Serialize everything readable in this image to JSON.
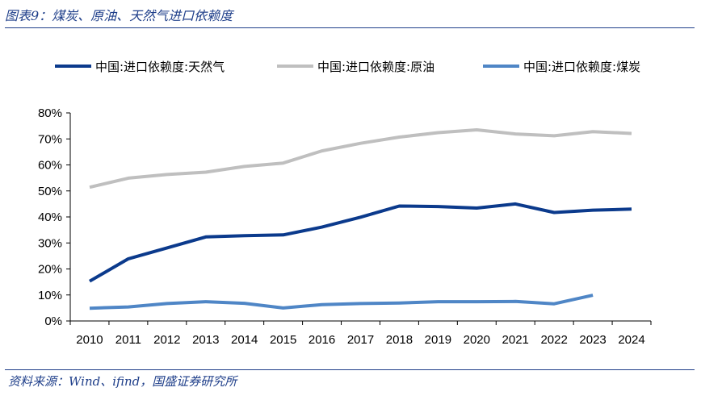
{
  "figure": {
    "title": "图表9：煤炭、原油、天然气进口依赖度",
    "source": "资料来源：Wind、ifind，国盛证券研究所"
  },
  "chart_data": {
    "type": "line",
    "title": "",
    "xlabel": "",
    "ylabel": "",
    "x": [
      "2010",
      "2011",
      "2012",
      "2013",
      "2014",
      "2015",
      "2016",
      "2017",
      "2018",
      "2019",
      "2020",
      "2021",
      "2022",
      "2023",
      "2024"
    ],
    "y_ticks": [
      "0%",
      "10%",
      "20%",
      "30%",
      "40%",
      "50%",
      "60%",
      "70%",
      "80%"
    ],
    "ylim": [
      0,
      80
    ],
    "grid": false,
    "legend_position": "top",
    "series": [
      {
        "name": "中国:进口依赖度:天然气",
        "color": "#0b3a8c",
        "values": [
          15.3,
          23.9,
          28.1,
          32.3,
          32.8,
          33.1,
          36.1,
          39.9,
          44.2,
          44.0,
          43.4,
          45.0,
          41.7,
          42.6,
          43.0
        ]
      },
      {
        "name": "中国:进口依赖度:原油",
        "color": "#bfbfbf",
        "values": [
          51.4,
          54.9,
          56.3,
          57.2,
          59.4,
          60.7,
          65.4,
          68.3,
          70.7,
          72.4,
          73.5,
          71.9,
          71.2,
          72.8,
          72.1
        ]
      },
      {
        "name": "中国:进口依赖度:煤炭",
        "color": "#4f86c6",
        "values": [
          4.9,
          5.4,
          6.7,
          7.4,
          6.8,
          5.0,
          6.3,
          6.7,
          6.9,
          7.4,
          7.4,
          7.5,
          6.6,
          9.9,
          null
        ]
      }
    ]
  }
}
